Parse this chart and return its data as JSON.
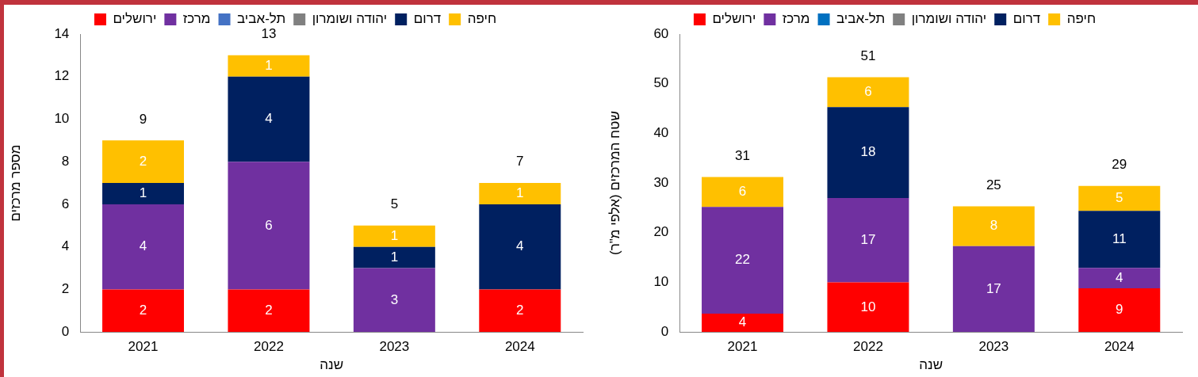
{
  "chart_data": [
    {
      "type": "bar",
      "stacked": true,
      "xlabel": "שנה",
      "ylabel": "מספר מרכזים",
      "categories": [
        "2021",
        "2022",
        "2023",
        "2024"
      ],
      "ylim": [
        0,
        14
      ],
      "yticks": [
        0,
        2,
        4,
        6,
        8,
        10,
        12,
        14
      ],
      "legend": "top",
      "totals": [
        "9",
        "13",
        "5",
        "7"
      ],
      "series": [
        {
          "name": "ירושלים",
          "color": "#ff0000",
          "values": [
            2,
            2,
            0,
            2
          ],
          "value_labels": [
            "2",
            "2",
            null,
            "2"
          ]
        },
        {
          "name": "מרכז",
          "color": "#7030a0",
          "values": [
            4,
            6,
            3,
            0
          ],
          "value_labels": [
            "4",
            "6",
            "3",
            null
          ]
        },
        {
          "name": "תל-אביב",
          "color": "#4472c4",
          "values": [
            0,
            0,
            0,
            0
          ],
          "value_labels": [
            null,
            null,
            null,
            null
          ]
        },
        {
          "name": "יהודה ושומרון",
          "color": "#808080",
          "values": [
            0,
            0,
            0,
            0
          ],
          "value_labels": [
            null,
            null,
            null,
            null
          ]
        },
        {
          "name": "דרום",
          "color": "#002060",
          "values": [
            1,
            4,
            1,
            4
          ],
          "value_labels": [
            "1",
            "4",
            "1",
            "4"
          ]
        },
        {
          "name": "חיפה",
          "color": "#ffc000",
          "values": [
            2,
            1,
            1,
            1
          ],
          "value_labels": [
            "2",
            "1",
            "1",
            "1"
          ]
        }
      ]
    },
    {
      "type": "bar",
      "stacked": true,
      "xlabel": "שנה",
      "ylabel": "שטח המרכזים (אלפי מ\"ר)",
      "categories": [
        "2021",
        "2022",
        "2023",
        "2024"
      ],
      "ylim": [
        0,
        60
      ],
      "yticks": [
        0,
        10,
        20,
        30,
        40,
        50,
        60
      ],
      "legend": "top",
      "totals": [
        "31",
        "51",
        "25",
        "29"
      ],
      "series": [
        {
          "name": "ירושלים",
          "color": "#ff0000",
          "values": [
            3.7,
            10,
            0,
            8.8
          ],
          "value_labels": [
            "4",
            "10",
            null,
            "9"
          ]
        },
        {
          "name": "מרכז",
          "color": "#7030a0",
          "values": [
            21.5,
            17,
            17.3,
            4.1
          ],
          "value_labels": [
            "22",
            "17",
            "17",
            "4"
          ]
        },
        {
          "name": "תל-אביב",
          "color": "#0070c0",
          "values": [
            0,
            0,
            0,
            0
          ],
          "value_labels": [
            null,
            null,
            null,
            null
          ]
        },
        {
          "name": "יהודה ושומרון",
          "color": "#808080",
          "values": [
            0,
            0,
            0,
            0
          ],
          "value_labels": [
            null,
            null,
            null,
            null
          ]
        },
        {
          "name": "דרום",
          "color": "#002060",
          "values": [
            0,
            18.3,
            0,
            11.5
          ],
          "value_labels": [
            null,
            "18",
            null,
            "11"
          ]
        },
        {
          "name": "חיפה",
          "color": "#ffc000",
          "values": [
            6,
            6,
            8,
            5
          ],
          "value_labels": [
            "6",
            "6",
            "8",
            "5"
          ]
        }
      ]
    }
  ]
}
